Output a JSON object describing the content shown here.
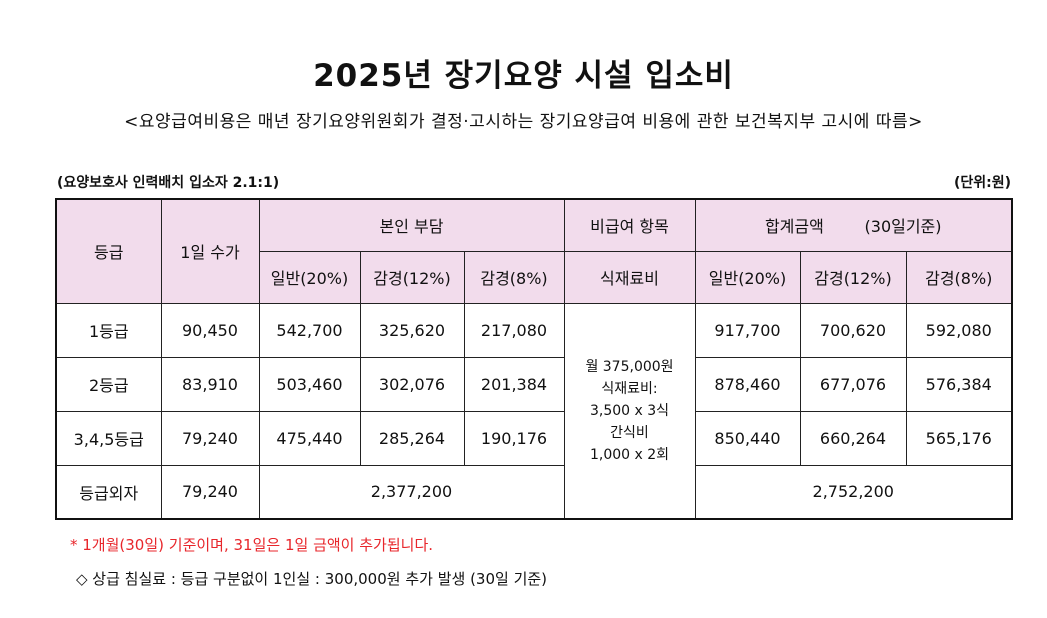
{
  "title": "2025년 장기요양 시설 입소비",
  "subtitle": "<요양급여비용은 매년 장기요양위원회가 결정·고시하는 장기요양급여 비용에 관한 보건복지부 고시에 따름>",
  "caption_left": "(요양보호사 인력배치 입소자  2.1:1)",
  "caption_right": "(단위:원)",
  "table": {
    "headers": {
      "grade": "등급",
      "daily_fee": "1일 수가",
      "self_pay": "본인 부담",
      "non_covered": "비급여 항목",
      "total": "합계금액        (30일기준)",
      "general": "일반(20%)",
      "reduced12": "감경(12%)",
      "reduced8": "감경(8%)",
      "meal": "식재료비"
    },
    "rows": [
      {
        "grade": "1등급",
        "daily": "90,450",
        "self_general": "542,700",
        "self_r12": "325,620",
        "self_r8": "217,080",
        "total_general": "917,700",
        "total_r12": "700,620",
        "total_r8": "592,080"
      },
      {
        "grade": "2등급",
        "daily": "83,910",
        "self_general": "503,460",
        "self_r12": "302,076",
        "self_r8": "201,384",
        "total_general": "878,460",
        "total_r12": "677,076",
        "total_r8": "576,384"
      },
      {
        "grade": "3,4,5등급",
        "daily": "79,240",
        "self_general": "475,440",
        "self_r12": "285,264",
        "self_r8": "190,176",
        "total_general": "850,440",
        "total_r12": "660,264",
        "total_r8": "565,176"
      },
      {
        "grade": "등급외자",
        "daily": "79,240",
        "self_combined": "2,377,200",
        "total_combined": "2,752,200"
      }
    ],
    "meal_cell": {
      "line1": "월 375,000원",
      "line2": "식재료비:",
      "line3": "3,500 x 3식",
      "line4": "간식비",
      "line5": "1,000 x 2회"
    }
  },
  "note": "* 1개월(30일) 기준이며, 31일은 1일 금액이 추가됩니다.",
  "extra": "◇ 상급 침실료 : 등급 구분없이 1인실 : 300,000원 추가 발생 (30일 기준)",
  "colors": {
    "header_bg": "#f2dcec",
    "note_red": "#e8262b"
  }
}
